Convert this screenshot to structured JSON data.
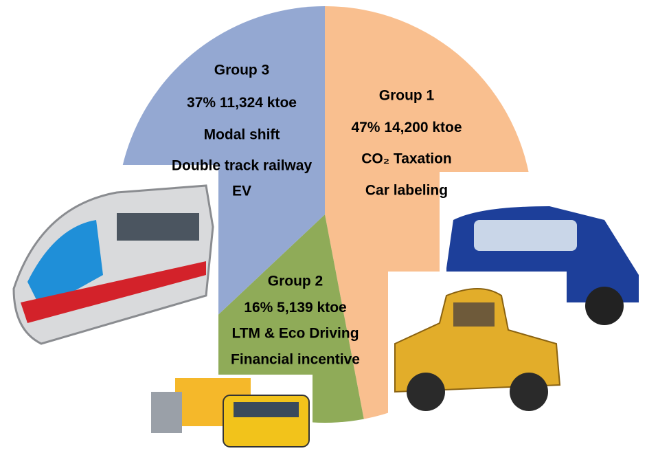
{
  "chart_data": {
    "type": "pie",
    "categories": [
      "Group 1",
      "Group 2",
      "Group 3"
    ],
    "values": [
      47,
      16,
      37
    ],
    "value_labels": [
      "47%",
      "16%",
      "37%"
    ],
    "amounts": [
      "14,200 ktoe",
      "5,139 ktoe",
      "11,324 ktoe"
    ],
    "measures": [
      [
        "CO₂ Taxation",
        "Car labeling"
      ],
      [
        "LTM & Eco Driving",
        "Financial incentive"
      ],
      [
        "Modal shift",
        "Double track railway",
        "EV"
      ]
    ],
    "colors": [
      "#f9bf8f",
      "#8fab58",
      "#94a8d2"
    ]
  }
}
